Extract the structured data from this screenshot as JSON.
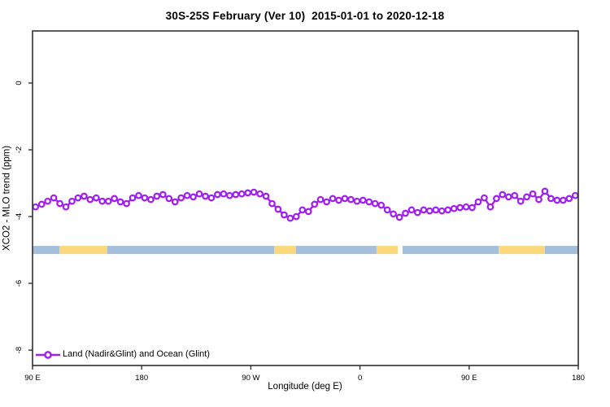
{
  "chart_data": {
    "type": "line",
    "title": "30S-25S February (Ver 10)  2015-01-01 to 2020-12-18",
    "xlabel": "Longitude (deg E)",
    "ylabel": "XCO2 - MLO trend (ppm)",
    "xlim": [
      90,
      540
    ],
    "ylim": [
      -8.46,
      1.56
    ],
    "grid": false,
    "x_ticks": [
      {
        "lon": 90,
        "label": "90 E"
      },
      {
        "lon": 180,
        "label": "180"
      },
      {
        "lon": 270,
        "label": "90 W"
      },
      {
        "lon": 360,
        "label": "0"
      },
      {
        "lon": 450,
        "label": "90 E"
      },
      {
        "lon": 540,
        "label": "180"
      }
    ],
    "y_ticks": [
      {
        "value": 0,
        "label": "0"
      },
      {
        "value": -2,
        "label": "-2"
      },
      {
        "value": -4,
        "label": "-4"
      },
      {
        "value": -6,
        "label": "-6"
      },
      {
        "value": -8,
        "label": "-8"
      }
    ],
    "legend": {
      "position": "bottom-left",
      "entries": [
        {
          "label": "Land (Nadir&Glint) and Ocean (Glint)",
          "color": "#A020F0",
          "marker": "open-circle"
        }
      ]
    },
    "series": [
      {
        "name": "Land (Nadir&Glint) and Ocean (Glint)",
        "color": "#A020F0",
        "marker": "open-circle",
        "x": [
          92.5,
          97.5,
          102.5,
          107.5,
          112.5,
          117.5,
          122.5,
          127.5,
          132.5,
          137.5,
          142.5,
          147.5,
          152.5,
          157.5,
          162.5,
          167.5,
          172.5,
          177.5,
          182.5,
          187.5,
          192.5,
          197.5,
          202.5,
          207.5,
          212.5,
          217.5,
          222.5,
          227.5,
          232.5,
          237.5,
          242.5,
          247.5,
          252.5,
          257.5,
          262.5,
          267.5,
          272.5,
          277.5,
          282.5,
          287.5,
          292.5,
          297.5,
          302.5,
          307.5,
          312.5,
          317.5,
          322.5,
          327.5,
          332.5,
          337.5,
          342.5,
          347.5,
          352.5,
          357.5,
          362.5,
          367.5,
          372.5,
          377.5,
          382.5,
          387.5,
          392.5,
          397.5,
          402.5,
          407.5,
          412.5,
          417.5,
          422.5,
          427.5,
          432.5,
          437.5,
          442.5,
          447.5,
          452.5,
          457.5,
          462.5,
          467.5,
          472.5,
          477.5,
          482.5,
          487.5,
          492.5,
          497.5,
          502.5,
          507.5,
          512.5,
          517.5,
          522.5,
          527.5,
          532.5,
          537.5
        ],
        "y": [
          -3.71,
          -3.63,
          -3.54,
          -3.44,
          -3.61,
          -3.71,
          -3.54,
          -3.44,
          -3.39,
          -3.49,
          -3.44,
          -3.54,
          -3.54,
          -3.46,
          -3.56,
          -3.61,
          -3.44,
          -3.37,
          -3.44,
          -3.49,
          -3.39,
          -3.34,
          -3.46,
          -3.56,
          -3.44,
          -3.37,
          -3.41,
          -3.32,
          -3.39,
          -3.44,
          -3.34,
          -3.32,
          -3.37,
          -3.34,
          -3.32,
          -3.29,
          -3.27,
          -3.32,
          -3.39,
          -3.61,
          -3.78,
          -3.95,
          -4.05,
          -4.0,
          -3.8,
          -3.85,
          -3.63,
          -3.49,
          -3.56,
          -3.46,
          -3.51,
          -3.46,
          -3.49,
          -3.54,
          -3.51,
          -3.56,
          -3.61,
          -3.66,
          -3.8,
          -3.92,
          -4.02,
          -3.9,
          -3.8,
          -3.88,
          -3.8,
          -3.83,
          -3.8,
          -3.83,
          -3.8,
          -3.76,
          -3.73,
          -3.71,
          -3.73,
          -3.56,
          -3.44,
          -3.71,
          -3.46,
          -3.34,
          -3.41,
          -3.37,
          -3.54,
          -3.41,
          -3.32,
          -3.49,
          -3.24,
          -3.46,
          -3.51,
          -3.51,
          -3.46,
          -3.37
        ]
      }
    ],
    "land_ocean_bar": {
      "y_value": -5,
      "colors": {
        "land": "#FBD87C",
        "ocean": "#A5BEDC"
      },
      "segments": [
        {
          "surface": "ocean",
          "from": 90,
          "to": 112.3
        },
        {
          "surface": "land",
          "from": 112.3,
          "to": 151.7
        },
        {
          "surface": "ocean",
          "from": 151.7,
          "to": 289.2
        },
        {
          "surface": "land",
          "from": 289.2,
          "to": 307.3
        },
        {
          "surface": "ocean",
          "from": 307.3,
          "to": 373.6
        },
        {
          "surface": "land",
          "from": 373.6,
          "to": 391.1
        },
        {
          "surface": "ocean",
          "from": 395.1,
          "to": 474.3
        },
        {
          "surface": "land",
          "from": 474.3,
          "to": 512.5
        },
        {
          "surface": "ocean",
          "from": 512.5,
          "to": 540
        }
      ]
    },
    "axis_color": "#303030",
    "text_color": "#000000"
  }
}
